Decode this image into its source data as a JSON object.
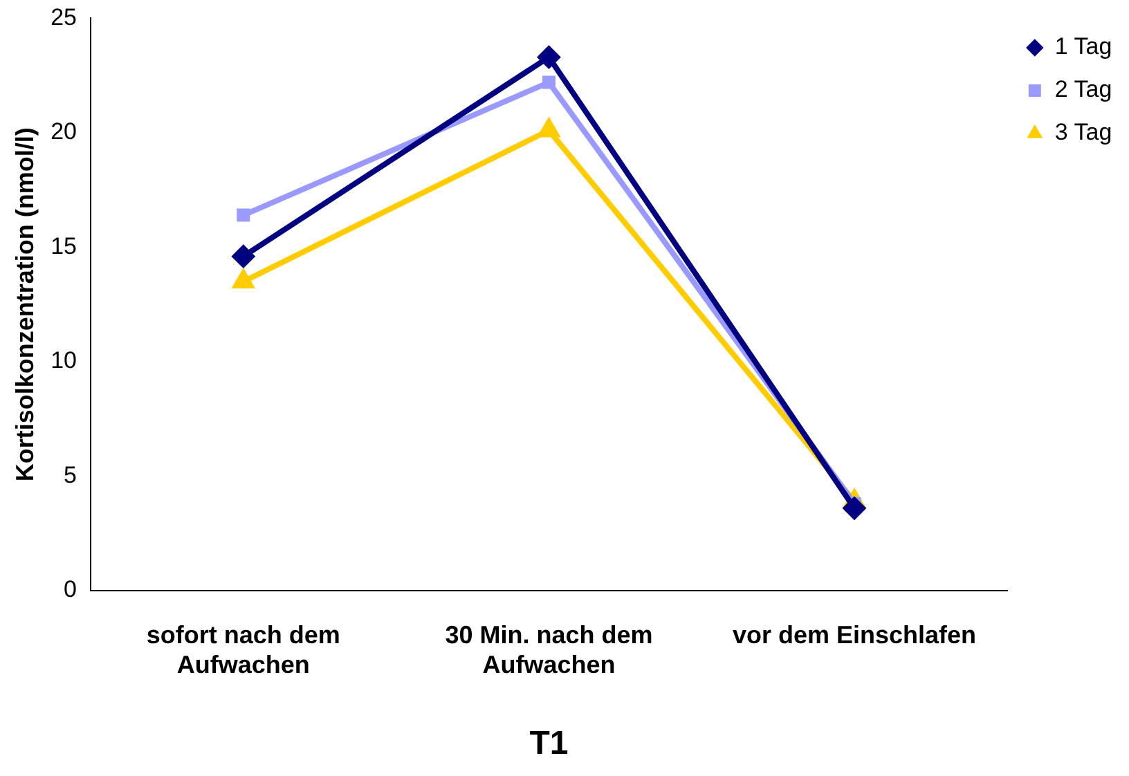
{
  "chart_data": {
    "type": "line",
    "xlabel": "T1",
    "ylabel": "Kortisolkonzentration (nmol/l)",
    "categories": [
      "sofort nach dem Aufwachen",
      "30 Min. nach dem Aufwachen",
      "vor dem Einschlafen"
    ],
    "series": [
      {
        "name": "1 Tag",
        "color": "#000080",
        "marker": "diamond",
        "values": [
          14.6,
          23.3,
          3.6
        ]
      },
      {
        "name": "2 Tag",
        "color": "#9999ff",
        "marker": "square",
        "values": [
          16.4,
          22.2,
          3.8
        ]
      },
      {
        "name": "3 Tag",
        "color": "#ffcc00",
        "marker": "triangle",
        "values": [
          13.5,
          20.1,
          3.9
        ]
      }
    ],
    "ylim": [
      0,
      25
    ],
    "yticks": [
      0,
      5,
      10,
      15,
      20,
      25
    ],
    "grid": false,
    "legend": "top right",
    "line_style": "solid"
  }
}
